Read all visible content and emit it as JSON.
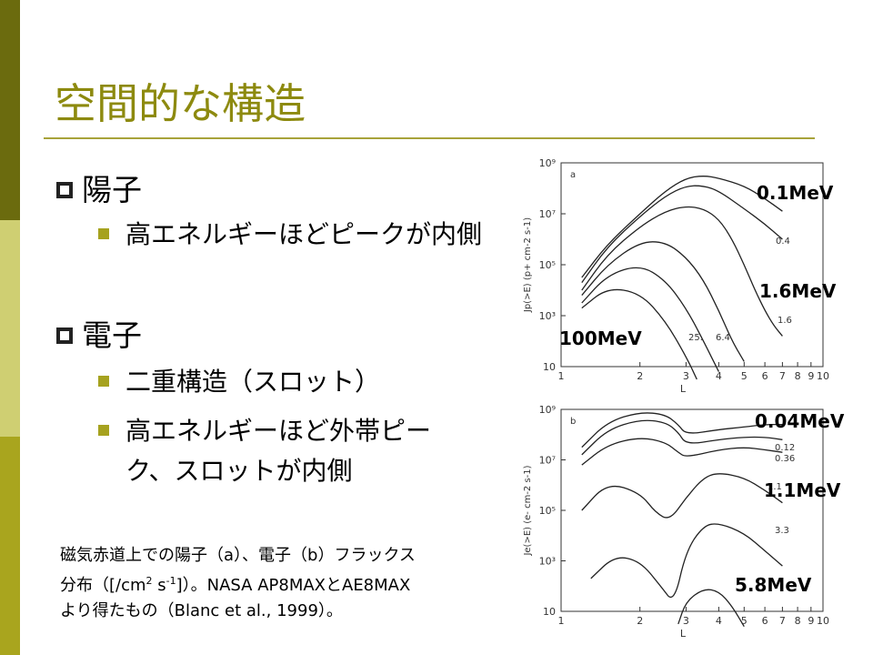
{
  "slide": {
    "title": "空間的な構造",
    "bullets": [
      {
        "label": "陽子",
        "sub": [
          "高エネルギーほどピークが内側"
        ]
      },
      {
        "label": "電子",
        "sub": [
          "二重構造（スロット）",
          "高エネルギーほど外帯ピーク、スロットが内側"
        ]
      }
    ],
    "caption": {
      "line1": "磁気赤道上での陽子（a）、電子（b）フラックス",
      "line2_pre": "分布（[/cm",
      "line2_sup1": "2",
      "line2_mid": " s",
      "line2_sup2": "-1",
      "line2_post": "]）。NASA AP8MAXとAE8MAX",
      "line3": "より得たもの（Blanc et al., 1999）。"
    },
    "colors": {
      "sidebar_dark": "#6b6b0e",
      "sidebar_light": "#cfcf72",
      "sidebar_mid": "#a9a51e",
      "accent": "#8d8a0f"
    }
  },
  "chart_data": [
    {
      "type": "line",
      "panel": "a",
      "xlabel": "L",
      "ylabel": "Jp(>E) (p+ cm-2 s-1)",
      "x_ticks": [
        "1",
        "2",
        "3",
        "4",
        "5",
        "6",
        "7",
        "8",
        "9",
        "10"
      ],
      "y_ticks": [
        "10",
        "10³",
        "10⁵",
        "10⁷",
        "10⁹"
      ],
      "xlim": [
        1,
        10
      ],
      "ylim_exp": [
        1,
        9
      ],
      "curve_labels": [
        "0.4",
        "1.6",
        "6.4",
        "25."
      ],
      "annotations": [
        "0.1MeV",
        "1.6MeV",
        "100MeV"
      ],
      "series": [
        {
          "x": [
            1.2,
            1.5,
            2.0,
            2.5,
            3.0,
            3.5,
            4.0,
            5.0,
            6.0,
            7.0
          ],
          "y": [
            4.5,
            5.8,
            7.0,
            7.9,
            8.4,
            8.5,
            8.4,
            8.1,
            7.6,
            7.1
          ]
        },
        {
          "x": [
            1.2,
            1.5,
            2.0,
            2.5,
            3.0,
            3.5,
            4.0,
            5.0,
            6.0,
            7.0
          ],
          "y": [
            4.3,
            5.7,
            6.9,
            7.7,
            8.1,
            8.1,
            7.9,
            7.2,
            6.6,
            6.0
          ]
        },
        {
          "x": [
            1.2,
            1.5,
            2.0,
            2.5,
            3.0,
            3.5,
            4.0,
            4.5,
            5.0,
            5.5,
            6.0,
            6.5,
            7.0
          ],
          "y": [
            4.0,
            5.4,
            6.5,
            7.1,
            7.3,
            7.2,
            6.8,
            6.0,
            5.0,
            4.0,
            3.2,
            2.6,
            2.2
          ]
        },
        {
          "x": [
            1.2,
            1.5,
            2.0,
            2.5,
            3.0,
            3.5,
            4.0,
            4.5,
            5.0
          ],
          "y": [
            3.8,
            5.0,
            5.9,
            5.9,
            5.3,
            4.4,
            3.2,
            2.0,
            1.2
          ]
        },
        {
          "x": [
            1.2,
            1.5,
            2.0,
            2.5,
            3.0,
            3.5,
            4.0
          ],
          "y": [
            3.5,
            4.6,
            5.0,
            4.4,
            3.3,
            2.0,
            0.8
          ]
        },
        {
          "x": [
            1.2,
            1.5,
            2.0,
            2.5,
            3.0,
            3.3
          ],
          "y": [
            3.3,
            4.1,
            3.9,
            2.8,
            1.4,
            0.5
          ]
        }
      ]
    },
    {
      "type": "line",
      "panel": "b",
      "xlabel": "L",
      "ylabel": "Je(>E) (e- cm-2 s-1)",
      "x_ticks": [
        "1",
        "2",
        "3",
        "4",
        "5",
        "6",
        "7",
        "8",
        "9",
        "10"
      ],
      "y_ticks": [
        "10",
        "10³",
        "10⁵",
        "10⁷",
        "10⁹"
      ],
      "xlim": [
        1,
        10
      ],
      "ylim_exp": [
        1,
        9
      ],
      "curve_labels": [
        "0.12",
        "0.36",
        "1.1",
        "3.3"
      ],
      "annotations": [
        "0.04MeV",
        "1.1MeV",
        "5.8MeV"
      ],
      "series": [
        {
          "x": [
            1.2,
            1.5,
            2.0,
            2.5,
            2.8,
            3.0,
            4.0,
            5.0,
            6.0,
            7.0
          ],
          "y": [
            7.5,
            8.5,
            8.9,
            8.8,
            8.4,
            8.0,
            8.2,
            8.3,
            8.4,
            8.4
          ]
        },
        {
          "x": [
            1.2,
            1.5,
            2.0,
            2.5,
            2.8,
            3.0,
            4.0,
            5.0,
            6.0,
            7.0
          ],
          "y": [
            7.2,
            8.2,
            8.6,
            8.5,
            8.1,
            7.6,
            7.8,
            7.9,
            7.9,
            7.8
          ]
        },
        {
          "x": [
            1.2,
            1.5,
            2.0,
            2.5,
            2.8,
            3.0,
            4.0,
            5.0,
            6.0,
            7.0
          ],
          "y": [
            6.8,
            7.6,
            7.9,
            7.7,
            7.3,
            7.1,
            7.4,
            7.5,
            7.4,
            7.3
          ]
        },
        {
          "x": [
            1.2,
            1.5,
            2.0,
            2.3,
            2.6,
            3.0,
            3.5,
            4.0,
            5.0,
            6.0,
            7.0
          ],
          "y": [
            5.0,
            6.1,
            5.7,
            4.9,
            4.6,
            5.5,
            6.3,
            6.5,
            6.3,
            5.8,
            5.3
          ]
        },
        {
          "x": [
            1.3,
            1.6,
            2.0,
            2.4,
            2.7,
            3.0,
            3.5,
            4.0,
            5.0,
            6.0,
            7.0
          ],
          "y": [
            2.3,
            3.2,
            3.0,
            2.0,
            1.3,
            3.4,
            4.4,
            4.5,
            4.1,
            3.4,
            2.8
          ]
        },
        {
          "x": [
            2.8,
            3.0,
            3.5,
            4.0,
            4.5,
            5.0
          ],
          "y": [
            0.5,
            1.4,
            1.9,
            1.8,
            1.2,
            0.4
          ]
        }
      ]
    }
  ]
}
